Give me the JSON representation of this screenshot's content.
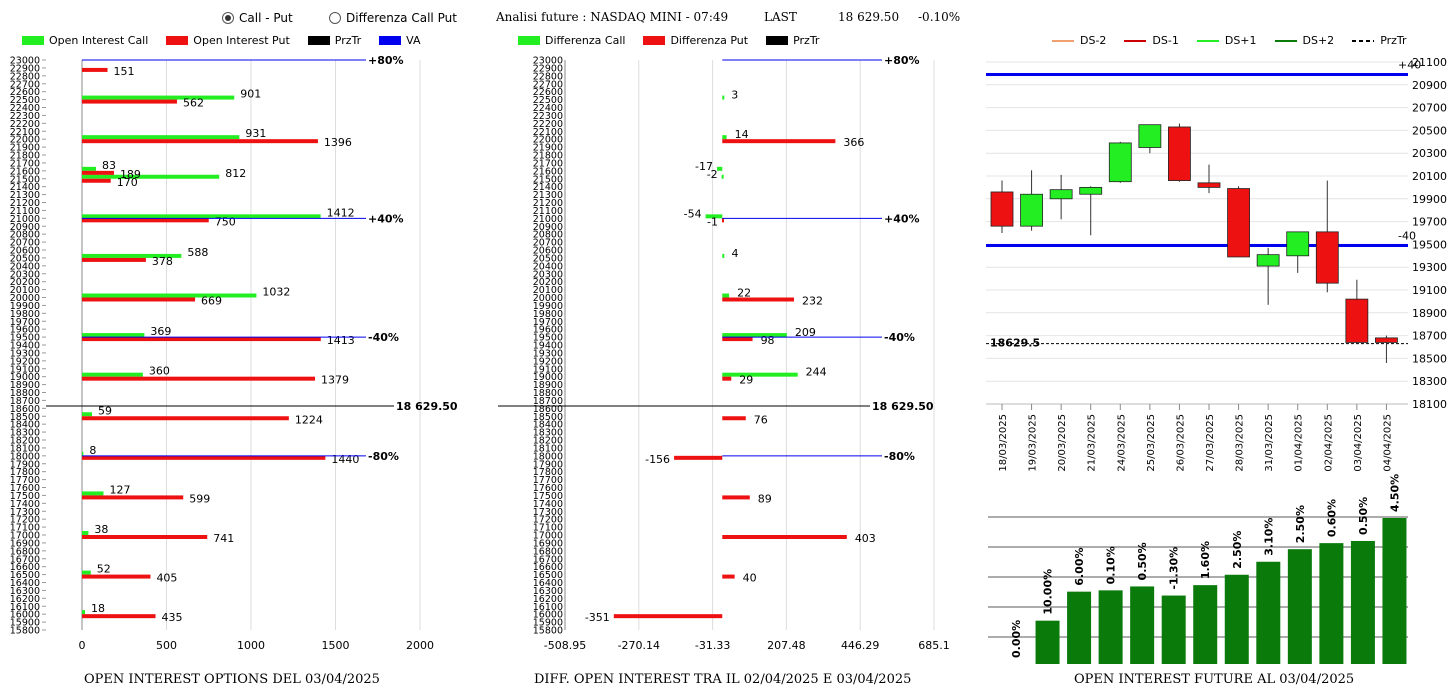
{
  "header": {
    "radio_call_put": "Call - Put",
    "radio_diff": "Differenza Call Put",
    "title": "Analisi future : NASDAQ MINI - 07:49",
    "last_label": "LAST",
    "last_value": "18 629.50",
    "change": "-0.10%"
  },
  "colors": {
    "green": "#22ee22",
    "red": "#ee1111",
    "black": "#000000",
    "blue": "#0000ee",
    "darkgreen": "#0a7a0a"
  },
  "left_legend": [
    "Open Interest Call",
    "Open Interest Put",
    "PrzTr",
    "VA"
  ],
  "mid_legend": [
    "Differenza Call",
    "Differenza Put",
    "PrzTr"
  ],
  "right_legend": [
    "DS-2",
    "DS-1",
    "DS+1",
    "DS+2",
    "PrzTr"
  ],
  "bottom_titles": {
    "left": "OPEN INTEREST OPTIONS DEL 03/04/2025",
    "mid": "DIFF. OPEN INTEREST TRA IL 02/04/2025 E 03/04/2025",
    "right": "OPEN INTEREST FUTURE AL 03/04/2025"
  },
  "chart_data": [
    {
      "type": "bar",
      "orientation": "horizontal",
      "title": "OPEN INTEREST OPTIONS DEL 03/04/2025",
      "y_ticks": [
        23000,
        22900,
        22800,
        22700,
        22600,
        22500,
        22400,
        22300,
        22200,
        22100,
        22000,
        21900,
        21800,
        21700,
        21600,
        21500,
        21400,
        21300,
        21200,
        21100,
        21000,
        20900,
        20800,
        20700,
        20600,
        20500,
        20400,
        20300,
        20200,
        20100,
        20000,
        19900,
        19800,
        19700,
        19600,
        19500,
        19400,
        19300,
        19200,
        19100,
        19000,
        18900,
        18800,
        18700,
        18600,
        18500,
        18400,
        18300,
        18200,
        18100,
        18000,
        17900,
        17800,
        17700,
        17600,
        17500,
        17400,
        17300,
        17200,
        17100,
        17000,
        16900,
        16800,
        16700,
        16600,
        16500,
        16400,
        16300,
        16200,
        16100,
        16000,
        15900,
        15800
      ],
      "x_ticks": [
        "0",
        "500",
        "1000",
        "1500",
        "2000"
      ],
      "xlim": [
        0,
        2000
      ],
      "series": [
        {
          "name": "Open Interest Call",
          "color": "#22ee22",
          "points": [
            [
              22500,
              901
            ],
            [
              22000,
              931
            ],
            [
              21600,
              83
            ],
            [
              21500,
              812
            ],
            [
              21000,
              1412
            ],
            [
              20500,
              588
            ],
            [
              20000,
              1032
            ],
            [
              19500,
              369
            ],
            [
              19000,
              360
            ],
            [
              18500,
              59
            ],
            [
              18000,
              8
            ],
            [
              17500,
              127
            ],
            [
              17000,
              38
            ],
            [
              16500,
              52
            ],
            [
              16000,
              18
            ]
          ]
        },
        {
          "name": "Open Interest Put",
          "color": "#ee1111",
          "points": [
            [
              22900,
              151
            ],
            [
              22500,
              562
            ],
            [
              22000,
              1396
            ],
            [
              21600,
              189
            ],
            [
              21500,
              170
            ],
            [
              21000,
              750
            ],
            [
              20500,
              378
            ],
            [
              20000,
              669
            ],
            [
              19500,
              1413
            ],
            [
              19000,
              1379
            ],
            [
              18500,
              1224
            ],
            [
              18000,
              1440
            ],
            [
              17500,
              599
            ],
            [
              17000,
              741
            ],
            [
              16500,
              405
            ],
            [
              16000,
              435
            ]
          ]
        }
      ],
      "ref_lines": [
        {
          "label": "+80%",
          "y": 23000,
          "color": "#0000ee"
        },
        {
          "label": "+40%",
          "y": 21000,
          "color": "#0000ee"
        },
        {
          "label": "-40%",
          "y": 19500,
          "color": "#0000ee"
        },
        {
          "label": "-80%",
          "y": 18000,
          "color": "#0000ee"
        },
        {
          "label": "18 629.50",
          "y": 18629.5,
          "color": "#000000"
        }
      ]
    },
    {
      "type": "bar",
      "orientation": "horizontal",
      "title": "DIFF. OPEN INTEREST TRA IL 02/04/2025 E 03/04/2025",
      "x_ticks": [
        "-508.95",
        "-270.14",
        "-31.33",
        "207.48",
        "446.29",
        "685.1"
      ],
      "xlim": [
        -508.95,
        685.1
      ],
      "series": [
        {
          "name": "Differenza Call",
          "color": "#22ee22",
          "points": [
            [
              22500,
              3
            ],
            [
              22000,
              14
            ],
            [
              21600,
              -17
            ],
            [
              21500,
              -2
            ],
            [
              21000,
              -54
            ],
            [
              20500,
              4
            ],
            [
              20000,
              22
            ],
            [
              19500,
              209
            ],
            [
              19000,
              244
            ]
          ]
        },
        {
          "name": "Differenza Put",
          "color": "#ee1111",
          "points": [
            [
              22000,
              366
            ],
            [
              21000,
              -1
            ],
            [
              20000,
              232
            ],
            [
              19500,
              98
            ],
            [
              19000,
              29
            ],
            [
              18500,
              76
            ],
            [
              18000,
              -156
            ],
            [
              17500,
              89
            ],
            [
              17000,
              403
            ],
            [
              16500,
              40
            ],
            [
              16000,
              -351
            ]
          ]
        }
      ],
      "ref_lines": [
        {
          "label": "+80%",
          "y": 23000
        },
        {
          "label": "+40%",
          "y": 21000
        },
        {
          "label": "-40%",
          "y": 19500
        },
        {
          "label": "-80%",
          "y": 18000
        },
        {
          "label": "18 629.50",
          "y": 18629.5
        }
      ]
    },
    {
      "type": "candlestick",
      "dates": [
        "18/03/2025",
        "19/03/2025",
        "20/03/2025",
        "21/03/2025",
        "24/03/2025",
        "25/03/2025",
        "26/03/2025",
        "27/03/2025",
        "28/03/2025",
        "31/03/2025",
        "01/04/2025",
        "02/04/2025",
        "03/04/2025",
        "04/04/2025"
      ],
      "ohlc": [
        [
          19960,
          20060,
          19600,
          19660
        ],
        [
          19660,
          20150,
          19620,
          19940
        ],
        [
          19900,
          20110,
          19720,
          19980
        ],
        [
          19940,
          20010,
          19580,
          20000
        ],
        [
          20050,
          20400,
          20040,
          20390
        ],
        [
          20350,
          20550,
          20300,
          20550
        ],
        [
          20530,
          20560,
          20050,
          20060
        ],
        [
          20040,
          20200,
          19950,
          20000
        ],
        [
          19990,
          20010,
          19390,
          19390
        ],
        [
          19310,
          19470,
          18970,
          19410
        ],
        [
          19400,
          19580,
          19250,
          19610
        ],
        [
          19610,
          20060,
          19080,
          19160
        ],
        [
          19020,
          19190,
          18630,
          18640
        ],
        [
          18680,
          18700,
          18460,
          18640
        ]
      ],
      "y_ticks": [
        "21100",
        "20900",
        "20700",
        "20500",
        "20300",
        "20100",
        "19900",
        "19700",
        "19500",
        "19300",
        "19100",
        "18900",
        "18700",
        "18500",
        "18300",
        "18100"
      ],
      "ylim": [
        18100,
        21100
      ],
      "ds_lines": [
        {
          "label": "+40",
          "y": 20990,
          "color": "#0000ee"
        },
        {
          "label": "-40",
          "y": 19490,
          "color": "#0000ee"
        }
      ],
      "przTr": {
        "label": "18629.5",
        "y": 18629.5
      }
    },
    {
      "type": "bar",
      "title": "OPEN INTEREST FUTURE AL 03/04/2025",
      "labels": [
        "0.00%",
        "10.00%",
        "6.00%",
        "0.10%",
        "0.50%",
        "-1.30%",
        "1.60%",
        "2.50%",
        "3.10%",
        "2.50%",
        "0.60%",
        "0.50%",
        "4.50%"
      ],
      "values": [
        0,
        100,
        167,
        170,
        179,
        158,
        182,
        206,
        236,
        265,
        279,
        284,
        337
      ],
      "color": "#0a7a0a"
    }
  ]
}
